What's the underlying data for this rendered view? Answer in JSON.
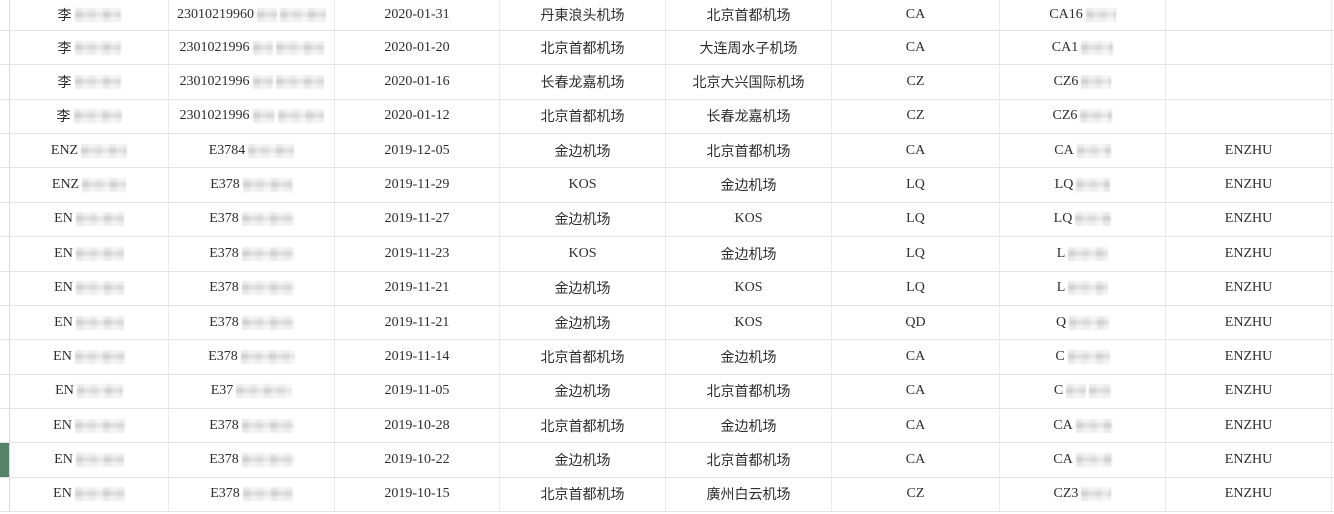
{
  "table": {
    "highlight_row_index": 13,
    "rows": [
      {
        "name": "李",
        "id": "23010219960",
        "date": "2020-01-31",
        "from": "丹東浪头机场",
        "to": "北京首都机场",
        "airline": "CA",
        "flight": "CA16",
        "note": "",
        "masks": {
          "name": [
            46
          ],
          "id": [
            20,
            46
          ],
          "flight": [
            30
          ]
        }
      },
      {
        "name": "李",
        "id": "2301021996",
        "date": "2020-01-20",
        "from": "北京首都机场",
        "to": "大连周水子机场",
        "airline": "CA",
        "flight": "CA1",
        "note": "",
        "masks": {
          "name": [
            46
          ],
          "id": [
            20,
            48
          ],
          "flight": [
            32
          ]
        }
      },
      {
        "name": "李",
        "id": "2301021996",
        "date": "2020-01-16",
        "from": "长春龙嘉机场",
        "to": "北京大兴国际机场",
        "airline": "CZ",
        "flight": "CZ6",
        "note": "",
        "masks": {
          "name": [
            46
          ],
          "id": [
            20,
            48
          ],
          "flight": [
            30
          ]
        }
      },
      {
        "name": "李",
        "id": "2301021996",
        "date": "2020-01-12",
        "from": "北京首都机场",
        "to": "长春龙嘉机场",
        "airline": "CZ",
        "flight": "CZ6",
        "note": "",
        "masks": {
          "name": [
            48
          ],
          "id": [
            22,
            46
          ],
          "flight": [
            32
          ]
        }
      },
      {
        "name": "ENZ",
        "id": "E3784",
        "date": "2019-12-05",
        "from": "金边机场",
        "to": "北京首都机场",
        "airline": "CA",
        "flight": "CA",
        "note": "ENZHU",
        "masks": {
          "name": [
            46
          ],
          "id": [
            46
          ],
          "flight": [
            34
          ]
        }
      },
      {
        "name": "ENZ",
        "id": "E378",
        "date": "2019-11-29",
        "from": "KOS",
        "to": "金边机场",
        "airline": "LQ",
        "flight": "LQ",
        "note": "ENZHU",
        "masks": {
          "name": [
            44
          ],
          "id": [
            50
          ],
          "flight": [
            34
          ]
        }
      },
      {
        "name": "EN",
        "id": "E378",
        "date": "2019-11-27",
        "from": "金边机场",
        "to": "KOS",
        "airline": "LQ",
        "flight": "LQ",
        "note": "ENZHU",
        "masks": {
          "name": [
            48
          ],
          "id": [
            52
          ],
          "flight": [
            36
          ]
        }
      },
      {
        "name": "EN",
        "id": "E378",
        "date": "2019-11-23",
        "from": "KOS",
        "to": "金边机场",
        "airline": "LQ",
        "flight": "L",
        "note": "ENZHU",
        "masks": {
          "name": [
            48
          ],
          "id": [
            52
          ],
          "flight": [
            40
          ]
        }
      },
      {
        "name": "EN",
        "id": "E378",
        "date": "2019-11-21",
        "from": "金边机场",
        "to": "KOS",
        "airline": "LQ",
        "flight": "L",
        "note": "ENZHU",
        "masks": {
          "name": [
            48
          ],
          "id": [
            52
          ],
          "flight": [
            40
          ]
        }
      },
      {
        "name": "EN",
        "id": "E378",
        "date": "2019-11-21",
        "from": "金边机场",
        "to": "KOS",
        "airline": "QD",
        "flight": "Q",
        "note": "ENZHU",
        "masks": {
          "name": [
            48
          ],
          "id": [
            52
          ],
          "flight": [
            40
          ]
        }
      },
      {
        "name": "EN",
        "id": "E378",
        "date": "2019-11-14",
        "from": "北京首都机场",
        "to": "金边机场",
        "airline": "CA",
        "flight": "C",
        "note": "ENZHU",
        "masks": {
          "name": [
            50
          ],
          "id": [
            54
          ],
          "flight": [
            42
          ]
        }
      },
      {
        "name": "EN",
        "id": "E37",
        "date": "2019-11-05",
        "from": "金边机场",
        "to": "北京首都机场",
        "airline": "CA",
        "flight": "C",
        "note": "ENZHU",
        "masks": {
          "name": [
            46
          ],
          "id": [
            56
          ],
          "flight": [
            20,
            22
          ]
        }
      },
      {
        "name": "EN",
        "id": "E378",
        "date": "2019-10-28",
        "from": "北京首都机场",
        "to": "金边机场",
        "airline": "CA",
        "flight": "CA",
        "note": "ENZHU",
        "masks": {
          "name": [
            50
          ],
          "id": [
            52
          ],
          "flight": [
            36
          ]
        }
      },
      {
        "name": "EN",
        "id": "E378",
        "date": "2019-10-22",
        "from": "金边机场",
        "to": "北京首都机场",
        "airline": "CA",
        "flight": "CA",
        "note": "ENZHU",
        "masks": {
          "name": [
            48
          ],
          "id": [
            52
          ],
          "flight": [
            36
          ]
        }
      },
      {
        "name": "EN",
        "id": "E378",
        "date": "2019-10-15",
        "from": "北京首都机场",
        "to": "廣州白云机场",
        "airline": "CZ",
        "flight": "CZ3",
        "note": "ENZHU",
        "masks": {
          "name": [
            50
          ],
          "id": [
            50
          ],
          "flight": [
            30
          ]
        }
      }
    ]
  },
  "colors": {
    "highlight_green": "#54836a",
    "row_line": "#e4e4e4",
    "col_line": "#ebebeb",
    "edge_line": "#d9d9d9",
    "text": "#2e2e2e",
    "mask_light": "#e8e8e8",
    "mask_dark": "#d7d7d7"
  }
}
